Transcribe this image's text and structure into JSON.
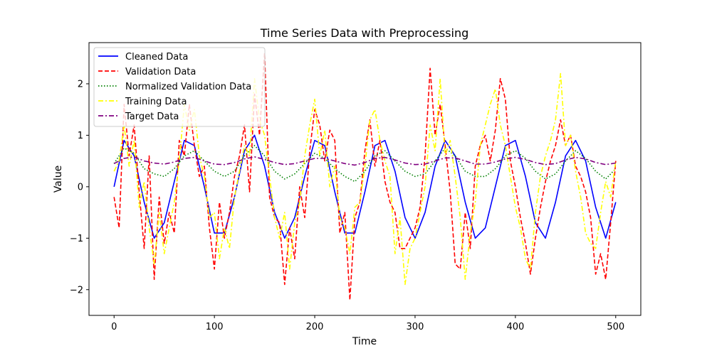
{
  "chart_data": {
    "type": "line",
    "title": "Time Series Data with Preprocessing",
    "xlabel": "Time",
    "ylabel": "Value",
    "xlim": [
      -25,
      525
    ],
    "ylim": [
      -2.5,
      2.8
    ],
    "xticks": [
      0,
      100,
      200,
      300,
      400,
      500
    ],
    "xtick_labels": [
      "0",
      "100",
      "200",
      "300",
      "400",
      "500"
    ],
    "yticks": [
      -2,
      -1,
      0,
      1,
      2
    ],
    "ytick_labels": [
      "−2",
      "−1",
      "0",
      "1",
      "2"
    ],
    "grid": false,
    "legend_position": "upper-left",
    "series": [
      {
        "name": "Cleaned Data",
        "color": "#0000ff",
        "dash": "solid",
        "x": [
          0,
          10,
          20,
          30,
          40,
          50,
          60,
          70,
          80,
          90,
          100,
          110,
          120,
          130,
          140,
          150,
          160,
          170,
          180,
          190,
          200,
          210,
          220,
          230,
          240,
          250,
          260,
          270,
          280,
          290,
          300,
          310,
          320,
          330,
          340,
          350,
          360,
          370,
          380,
          390,
          400,
          410,
          420,
          430,
          440,
          450,
          460,
          470,
          480,
          490,
          500
        ],
        "values": [
          0,
          0.9,
          0.6,
          -0.3,
          -1.0,
          -0.7,
          0.1,
          0.9,
          0.8,
          0.0,
          -0.9,
          -0.9,
          -0.2,
          0.7,
          1.0,
          0.4,
          -0.5,
          -1.0,
          -0.6,
          0.2,
          0.9,
          0.8,
          -0.1,
          -0.9,
          -0.9,
          -0.1,
          0.8,
          0.9,
          0.3,
          -0.6,
          -1.0,
          -0.5,
          0.4,
          0.9,
          0.6,
          -0.3,
          -1.0,
          -0.8,
          0.0,
          0.8,
          0.9,
          0.2,
          -0.7,
          -1.0,
          -0.3,
          0.6,
          0.9,
          0.5,
          -0.4,
          -1.0,
          -0.3
        ]
      },
      {
        "name": "Validation Data",
        "color": "#ff0000",
        "dash": "dashed",
        "x": [
          0,
          5,
          10,
          15,
          20,
          25,
          30,
          35,
          40,
          45,
          50,
          55,
          60,
          65,
          70,
          75,
          80,
          85,
          90,
          95,
          100,
          105,
          110,
          115,
          120,
          125,
          130,
          135,
          140,
          145,
          150,
          155,
          160,
          165,
          170,
          175,
          180,
          185,
          190,
          195,
          200,
          205,
          210,
          215,
          220,
          225,
          230,
          235,
          240,
          245,
          250,
          255,
          260,
          265,
          270,
          275,
          280,
          285,
          290,
          295,
          300,
          305,
          310,
          315,
          320,
          325,
          330,
          335,
          340,
          345,
          350,
          355,
          360,
          365,
          370,
          375,
          380,
          385,
          390,
          395,
          400,
          405,
          410,
          415,
          420,
          425,
          430,
          435,
          440,
          445,
          450,
          455,
          460,
          465,
          470,
          475,
          480,
          485,
          490,
          495,
          500
        ],
        "values": [
          -0.2,
          -0.8,
          1.6,
          0.6,
          1.2,
          -0.1,
          -1.2,
          0.6,
          -1.8,
          -0.2,
          -1.1,
          -0.5,
          -0.9,
          0.9,
          0.6,
          1.6,
          0.8,
          0.2,
          0.4,
          -0.8,
          -1.6,
          -0.3,
          -1.0,
          -0.5,
          0.2,
          0.6,
          1.2,
          -0.1,
          1.8,
          1.0,
          2.6,
          -0.2,
          -0.6,
          -0.7,
          -1.9,
          -0.8,
          -1.4,
          0.0,
          -0.6,
          0.7,
          1.5,
          1.2,
          0.5,
          1.1,
          0.9,
          -0.9,
          -0.5,
          -2.2,
          -0.6,
          -0.3,
          0.7,
          1.3,
          0.4,
          0.9,
          0.1,
          -0.3,
          -0.5,
          -1.2,
          -1.2,
          -1.0,
          -0.8,
          -0.4,
          0.6,
          2.3,
          1.0,
          1.6,
          0.8,
          -0.1,
          -1.5,
          -1.6,
          -0.5,
          -1.2,
          0.4,
          0.8,
          1.0,
          0.5,
          1.1,
          2.1,
          1.7,
          0.5,
          0.0,
          -0.6,
          -1.1,
          -1.7,
          -1.0,
          -0.4,
          0.1,
          0.5,
          0.8,
          1.3,
          0.8,
          1.0,
          0.4,
          0.2,
          -0.1,
          -0.6,
          -1.7,
          -1.3,
          -1.8,
          -0.7,
          0.5
        ]
      },
      {
        "name": "Normalized Validation Data",
        "color": "#008000",
        "dash": "dotted",
        "x": [
          0,
          10,
          20,
          30,
          40,
          50,
          60,
          70,
          80,
          90,
          100,
          110,
          120,
          130,
          140,
          150,
          160,
          170,
          180,
          190,
          200,
          210,
          220,
          230,
          240,
          250,
          260,
          270,
          280,
          290,
          300,
          310,
          320,
          330,
          340,
          350,
          360,
          370,
          380,
          390,
          400,
          410,
          420,
          430,
          440,
          450,
          460,
          470,
          480,
          490,
          500
        ],
        "values": [
          0.45,
          0.75,
          0.65,
          0.35,
          0.25,
          0.2,
          0.35,
          0.6,
          0.7,
          0.5,
          0.3,
          0.2,
          0.3,
          0.6,
          0.8,
          0.6,
          0.3,
          0.15,
          0.25,
          0.45,
          0.65,
          0.55,
          0.35,
          0.2,
          0.1,
          0.3,
          0.6,
          0.7,
          0.5,
          0.3,
          0.2,
          0.25,
          0.5,
          0.75,
          0.6,
          0.3,
          0.2,
          0.2,
          0.35,
          0.6,
          0.7,
          0.55,
          0.3,
          0.15,
          0.25,
          0.5,
          0.7,
          0.55,
          0.3,
          0.15,
          0.35
        ]
      },
      {
        "name": "Training Data",
        "color": "#ffff00",
        "dash": "dashdot",
        "x": [
          0,
          5,
          10,
          15,
          20,
          25,
          30,
          35,
          40,
          45,
          50,
          55,
          60,
          65,
          70,
          75,
          80,
          85,
          90,
          95,
          100,
          105,
          110,
          115,
          120,
          125,
          130,
          135,
          140,
          145,
          150,
          155,
          160,
          165,
          170,
          175,
          180,
          185,
          190,
          195,
          200,
          205,
          210,
          215,
          220,
          225,
          230,
          235,
          240,
          245,
          250,
          255,
          260,
          265,
          270,
          275,
          280,
          285,
          290,
          295,
          300,
          305,
          310,
          315,
          320,
          325,
          330,
          335,
          340,
          345,
          350,
          355,
          360,
          365,
          370,
          375,
          380,
          385,
          390,
          395,
          400,
          405,
          410,
          415,
          420,
          425,
          430,
          435,
          440,
          445,
          450,
          455,
          460,
          465,
          470,
          475,
          480,
          485,
          490,
          495,
          500
        ],
        "values": [
          0.3,
          0.5,
          1.2,
          0.4,
          0.9,
          -0.4,
          0.1,
          -0.8,
          -1.5,
          -0.5,
          -1.3,
          -0.8,
          -0.3,
          0.5,
          1.6,
          1.1,
          1.5,
          0.6,
          0.2,
          -0.6,
          -0.5,
          -1.4,
          -0.8,
          -1.2,
          -0.2,
          0.3,
          0.8,
          0.6,
          2.1,
          1.3,
          1.0,
          0.2,
          -0.6,
          -1.0,
          -0.5,
          -1.6,
          -0.7,
          -0.3,
          0.6,
          1.2,
          1.7,
          0.6,
          1.1,
          0.0,
          0.4,
          -0.6,
          -0.8,
          -1.3,
          -0.4,
          -0.3,
          0.4,
          1.3,
          1.5,
          0.9,
          0.5,
          0.2,
          -1.3,
          -0.6,
          -1.9,
          -1.2,
          -1.0,
          -0.5,
          0.0,
          1.2,
          0.7,
          2.1,
          0.6,
          0.9,
          0.2,
          -0.6,
          -1.8,
          -0.9,
          -0.3,
          0.8,
          1.2,
          1.6,
          1.9,
          1.2,
          0.8,
          0.2,
          -0.4,
          -0.8,
          -1.4,
          -1.6,
          -0.5,
          0.2,
          0.6,
          0.9,
          1.3,
          2.2,
          0.8,
          1.0,
          0.3,
          -0.2,
          -0.9,
          -1.1,
          -1.2,
          -0.5,
          0.1,
          -0.2,
          0.5
        ]
      },
      {
        "name": "Target Data",
        "color": "#800080",
        "dash": "dashdot",
        "x": [
          0,
          10,
          20,
          30,
          40,
          50,
          60,
          70,
          80,
          90,
          100,
          110,
          120,
          130,
          140,
          150,
          160,
          170,
          180,
          190,
          200,
          210,
          220,
          230,
          240,
          250,
          260,
          270,
          280,
          290,
          300,
          310,
          320,
          330,
          340,
          350,
          360,
          370,
          380,
          390,
          400,
          410,
          420,
          430,
          440,
          450,
          460,
          470,
          480,
          490,
          500
        ],
        "values": [
          0.45,
          0.55,
          0.58,
          0.5,
          0.46,
          0.44,
          0.48,
          0.55,
          0.57,
          0.5,
          0.44,
          0.43,
          0.47,
          0.54,
          0.58,
          0.53,
          0.47,
          0.43,
          0.45,
          0.5,
          0.55,
          0.55,
          0.5,
          0.45,
          0.42,
          0.47,
          0.55,
          0.57,
          0.52,
          0.46,
          0.43,
          0.44,
          0.5,
          0.56,
          0.56,
          0.5,
          0.44,
          0.44,
          0.48,
          0.54,
          0.57,
          0.53,
          0.47,
          0.43,
          0.45,
          0.52,
          0.57,
          0.54,
          0.47,
          0.43,
          0.46
        ]
      }
    ]
  }
}
